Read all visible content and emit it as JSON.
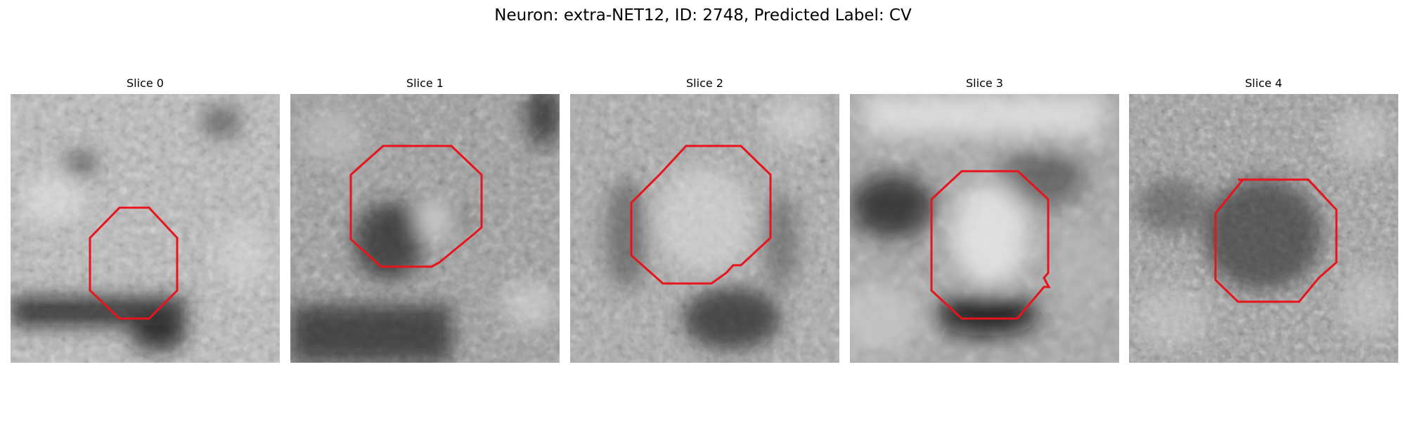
{
  "figure": {
    "suptitle": "Neuron: extra-NET12, ID: 2748, Predicted Label: CV",
    "panels": [
      {
        "title": "Slice 0",
        "outline_color": "#e8141b"
      },
      {
        "title": "Slice 1",
        "outline_color": "#e8141b"
      },
      {
        "title": "Slice 2",
        "outline_color": "#e8141b"
      },
      {
        "title": "Slice 3",
        "outline_color": "#e8141b"
      },
      {
        "title": "Slice 4",
        "outline_color": "#e8141b"
      }
    ],
    "colormap": "grayscale"
  }
}
